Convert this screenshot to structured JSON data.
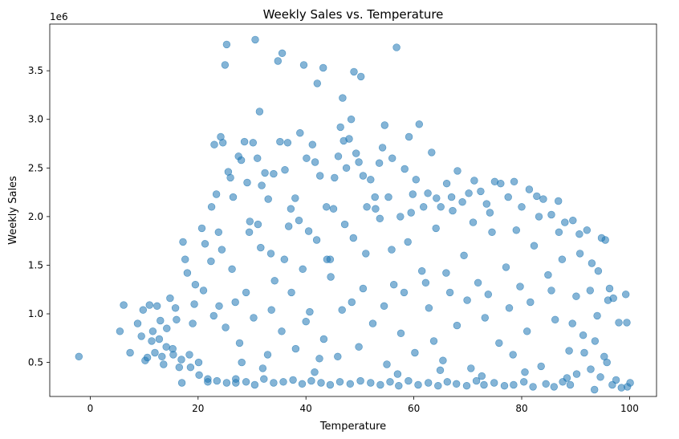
{
  "chart_data": {
    "type": "scatter",
    "title": "Weekly Sales vs. Temperature",
    "xlabel": "Temperature",
    "ylabel": "Weekly Sales",
    "y_offset_label": "1e6",
    "xlim": [
      -7.5,
      105
    ],
    "ylim": [
      0.15,
      3.98
    ],
    "xticks": [
      0,
      20,
      40,
      60,
      80,
      100
    ],
    "xtick_labels": [
      "0",
      "20",
      "40",
      "60",
      "80",
      "100"
    ],
    "yticks": [
      0.5,
      1.0,
      1.5,
      2.0,
      2.5,
      3.0,
      3.5
    ],
    "ytick_labels": [
      "0.5",
      "1.0",
      "1.5",
      "2.0",
      "2.5",
      "3.0",
      "3.5"
    ],
    "marker_color": "#1f77b4",
    "marker_alpha": 0.55,
    "grid": false,
    "series": [
      {
        "name": "Weekly Sales",
        "points": [
          [
            -2.1,
            0.56
          ],
          [
            5.5,
            0.82
          ],
          [
            6.2,
            1.09
          ],
          [
            7.4,
            0.6
          ],
          [
            9.5,
            0.77
          ],
          [
            9.8,
            1.04
          ],
          [
            10.2,
            0.52
          ],
          [
            10.6,
            0.55
          ],
          [
            11.0,
            1.09
          ],
          [
            11.6,
            0.82
          ],
          [
            12.0,
            0.6
          ],
          [
            12.4,
            1.08
          ],
          [
            13.0,
            0.93
          ],
          [
            13.6,
            0.48
          ],
          [
            14.2,
            0.85
          ],
          [
            14.8,
            1.16
          ],
          [
            15.3,
            0.64
          ],
          [
            15.8,
            1.06
          ],
          [
            16.5,
            0.45
          ],
          [
            17.0,
            0.29
          ],
          [
            17.2,
            1.74
          ],
          [
            17.6,
            1.56
          ],
          [
            18.0,
            1.42
          ],
          [
            18.4,
            0.58
          ],
          [
            19.0,
            0.9
          ],
          [
            19.5,
            1.3
          ],
          [
            20.1,
            0.5
          ],
          [
            20.7,
            1.88
          ],
          [
            21.3,
            1.72
          ],
          [
            21.8,
            0.3
          ],
          [
            22.5,
            2.1
          ],
          [
            23.0,
            2.74
          ],
          [
            23.4,
            2.23
          ],
          [
            23.8,
            1.84
          ],
          [
            24.2,
            2.82
          ],
          [
            24.6,
            2.76
          ],
          [
            25.0,
            3.56
          ],
          [
            25.3,
            3.77
          ],
          [
            25.6,
            2.46
          ],
          [
            26.0,
            2.4
          ],
          [
            26.5,
            2.2
          ],
          [
            27.0,
            0.29
          ],
          [
            27.5,
            2.62
          ],
          [
            28.0,
            2.58
          ],
          [
            28.6,
            2.77
          ],
          [
            29.1,
            2.35
          ],
          [
            29.6,
            1.95
          ],
          [
            30.2,
            2.76
          ],
          [
            30.6,
            3.82
          ],
          [
            31.0,
            2.6
          ],
          [
            31.4,
            3.08
          ],
          [
            31.8,
            2.32
          ],
          [
            32.4,
            2.45
          ],
          [
            33.0,
            2.18
          ],
          [
            33.5,
            1.62
          ],
          [
            34.0,
            2.44
          ],
          [
            34.8,
            3.6
          ],
          [
            35.2,
            2.77
          ],
          [
            35.6,
            3.68
          ],
          [
            36.1,
            2.48
          ],
          [
            36.6,
            2.76
          ],
          [
            37.2,
            2.08
          ],
          [
            38.0,
            2.19
          ],
          [
            38.9,
            2.86
          ],
          [
            39.6,
            3.56
          ],
          [
            40.1,
            2.6
          ],
          [
            40.5,
            1.85
          ],
          [
            41.2,
            2.74
          ],
          [
            41.7,
            2.56
          ],
          [
            42.1,
            3.37
          ],
          [
            42.6,
            2.42
          ],
          [
            43.2,
            3.53
          ],
          [
            43.8,
            2.1
          ],
          [
            44.5,
            1.56
          ],
          [
            45.3,
            2.4
          ],
          [
            46.0,
            2.62
          ],
          [
            46.4,
            2.92
          ],
          [
            46.8,
            3.22
          ],
          [
            47.0,
            2.78
          ],
          [
            47.5,
            2.5
          ],
          [
            48.0,
            2.8
          ],
          [
            48.4,
            3.0
          ],
          [
            48.9,
            3.49
          ],
          [
            49.3,
            2.65
          ],
          [
            49.8,
            2.56
          ],
          [
            50.2,
            3.44
          ],
          [
            50.6,
            2.42
          ],
          [
            51.3,
            2.1
          ],
          [
            52.0,
            2.38
          ],
          [
            52.8,
            2.2
          ],
          [
            53.6,
            2.55
          ],
          [
            54.2,
            2.71
          ],
          [
            54.6,
            2.94
          ],
          [
            55.3,
            2.2
          ],
          [
            56.0,
            2.6
          ],
          [
            56.8,
            3.74
          ],
          [
            57.5,
            2.0
          ],
          [
            58.3,
            2.49
          ],
          [
            59.1,
            2.82
          ],
          [
            59.8,
            2.23
          ],
          [
            60.4,
            2.38
          ],
          [
            61.0,
            2.95
          ],
          [
            61.8,
            2.1
          ],
          [
            62.6,
            2.24
          ],
          [
            63.3,
            2.66
          ],
          [
            64.2,
            2.19
          ],
          [
            65.0,
            2.1
          ],
          [
            66.1,
            2.34
          ],
          [
            67.0,
            2.2
          ],
          [
            68.1,
            2.47
          ],
          [
            69.0,
            2.15
          ],
          [
            70.2,
            2.24
          ],
          [
            71.2,
            2.37
          ],
          [
            72.4,
            2.26
          ],
          [
            73.5,
            2.13
          ],
          [
            75.0,
            2.36
          ],
          [
            76.1,
            2.34
          ],
          [
            77.5,
            2.2
          ],
          [
            78.6,
            2.36
          ],
          [
            80.0,
            2.1
          ],
          [
            81.4,
            2.28
          ],
          [
            82.8,
            2.21
          ],
          [
            84.0,
            2.18
          ],
          [
            85.5,
            2.02
          ],
          [
            86.8,
            2.16
          ],
          [
            88.0,
            1.94
          ],
          [
            89.5,
            1.96
          ],
          [
            90.7,
            1.82
          ],
          [
            92.1,
            1.86
          ],
          [
            93.0,
            1.52
          ],
          [
            94.2,
            1.44
          ],
          [
            95.5,
            1.76
          ],
          [
            96.3,
            1.26
          ],
          [
            97.0,
            1.16
          ],
          [
            98.0,
            0.91
          ],
          [
            99.3,
            1.2
          ],
          [
            99.5,
            0.91
          ],
          [
            99.6,
            0.25
          ],
          [
            100.1,
            0.29
          ],
          [
            98.5,
            0.24
          ],
          [
            97.5,
            0.32
          ],
          [
            96.8,
            0.27
          ],
          [
            95.8,
            0.5
          ],
          [
            94.6,
            0.35
          ],
          [
            93.5,
            0.22
          ],
          [
            92.8,
            0.43
          ],
          [
            91.6,
            0.6
          ],
          [
            90.2,
            0.38
          ],
          [
            89.0,
            0.27
          ],
          [
            87.6,
            0.3
          ],
          [
            86.0,
            0.25
          ],
          [
            84.5,
            0.28
          ],
          [
            82.1,
            0.25
          ],
          [
            80.4,
            0.3
          ],
          [
            78.5,
            0.27
          ],
          [
            76.8,
            0.26
          ],
          [
            74.9,
            0.29
          ],
          [
            73.0,
            0.27
          ],
          [
            71.6,
            0.31
          ],
          [
            69.8,
            0.26
          ],
          [
            67.9,
            0.28
          ],
          [
            66.2,
            0.3
          ],
          [
            64.5,
            0.26
          ],
          [
            62.7,
            0.29
          ],
          [
            60.8,
            0.27
          ],
          [
            59.0,
            0.31
          ],
          [
            57.2,
            0.26
          ],
          [
            55.6,
            0.3
          ],
          [
            53.8,
            0.27
          ],
          [
            52.0,
            0.29
          ],
          [
            50.1,
            0.31
          ],
          [
            48.2,
            0.28
          ],
          [
            46.3,
            0.3
          ],
          [
            44.5,
            0.27
          ],
          [
            42.8,
            0.29
          ],
          [
            41.0,
            0.31
          ],
          [
            39.3,
            0.28
          ],
          [
            37.6,
            0.32
          ],
          [
            35.8,
            0.3
          ],
          [
            34.0,
            0.29
          ],
          [
            32.2,
            0.33
          ],
          [
            30.5,
            0.27
          ],
          [
            28.9,
            0.3
          ],
          [
            27.0,
            0.33
          ],
          [
            25.3,
            0.29
          ],
          [
            23.5,
            0.31
          ],
          [
            21.8,
            0.33
          ],
          [
            20.2,
            0.37
          ],
          [
            18.6,
            0.45
          ],
          [
            16.9,
            0.53
          ],
          [
            15.4,
            0.58
          ],
          [
            14.1,
            0.66
          ],
          [
            12.8,
            0.74
          ],
          [
            21.0,
            1.24
          ],
          [
            22.4,
            1.54
          ],
          [
            23.9,
            1.08
          ],
          [
            25.1,
            0.86
          ],
          [
            26.3,
            1.46
          ],
          [
            27.7,
            0.7
          ],
          [
            28.9,
            1.22
          ],
          [
            30.3,
            0.96
          ],
          [
            31.6,
            1.68
          ],
          [
            32.9,
            0.58
          ],
          [
            34.2,
            1.34
          ],
          [
            35.5,
            0.82
          ],
          [
            36.8,
            1.9
          ],
          [
            38.1,
            0.64
          ],
          [
            39.4,
            1.46
          ],
          [
            40.7,
            1.02
          ],
          [
            42.0,
            1.76
          ],
          [
            43.3,
            0.74
          ],
          [
            44.6,
            1.38
          ],
          [
            45.9,
            0.56
          ],
          [
            47.2,
            1.92
          ],
          [
            48.5,
            1.12
          ],
          [
            49.8,
            0.66
          ],
          [
            51.1,
            1.62
          ],
          [
            52.4,
            0.9
          ],
          [
            53.7,
            1.98
          ],
          [
            55.0,
            0.48
          ],
          [
            56.3,
            1.3
          ],
          [
            57.6,
            0.8
          ],
          [
            58.9,
            1.74
          ],
          [
            60.2,
            0.6
          ],
          [
            61.5,
            1.44
          ],
          [
            62.8,
            1.06
          ],
          [
            64.1,
            1.88
          ],
          [
            65.4,
            0.52
          ],
          [
            66.7,
            1.22
          ],
          [
            68.0,
            0.88
          ],
          [
            69.3,
            1.6
          ],
          [
            70.6,
            0.44
          ],
          [
            71.9,
            1.32
          ],
          [
            73.2,
            0.96
          ],
          [
            74.5,
            1.84
          ],
          [
            75.8,
            0.7
          ],
          [
            77.1,
            1.48
          ],
          [
            78.4,
            0.58
          ],
          [
            79.7,
            1.28
          ],
          [
            81.0,
            0.82
          ],
          [
            82.3,
            1.7
          ],
          [
            83.6,
            0.46
          ],
          [
            84.9,
            1.4
          ],
          [
            86.2,
            0.94
          ],
          [
            87.5,
            1.56
          ],
          [
            88.8,
            0.62
          ],
          [
            90.1,
            1.18
          ],
          [
            91.4,
            0.78
          ],
          [
            92.7,
            1.24
          ],
          [
            94.0,
            0.98
          ],
          [
            95.3,
            0.56
          ],
          [
            22.9,
            0.98
          ],
          [
            24.4,
            1.66
          ],
          [
            26.9,
            1.12
          ],
          [
            29.5,
            1.84
          ],
          [
            33.6,
            1.04
          ],
          [
            37.3,
            1.22
          ],
          [
            40.0,
            0.92
          ],
          [
            43.9,
            1.56
          ],
          [
            46.7,
            1.04
          ],
          [
            50.6,
            1.26
          ],
          [
            54.5,
            1.08
          ],
          [
            58.2,
            1.22
          ],
          [
            62.2,
            1.32
          ],
          [
            66.0,
            1.42
          ],
          [
            69.9,
            1.14
          ],
          [
            73.8,
            1.2
          ],
          [
            77.7,
            1.06
          ],
          [
            81.6,
            1.12
          ],
          [
            85.5,
            1.24
          ],
          [
            89.4,
            0.9
          ],
          [
            93.6,
            0.72
          ],
          [
            36.0,
            1.56
          ],
          [
            42.5,
            0.54
          ],
          [
            48.8,
            1.78
          ],
          [
            55.9,
            1.66
          ],
          [
            63.7,
            0.72
          ],
          [
            71.0,
            1.94
          ],
          [
            79.0,
            1.86
          ],
          [
            86.9,
            1.84
          ],
          [
            67.2,
            2.06
          ],
          [
            74.1,
            2.04
          ],
          [
            59.5,
            2.04
          ],
          [
            52.9,
            2.08
          ],
          [
            45.1,
            2.08
          ],
          [
            38.7,
            1.96
          ],
          [
            31.1,
            1.92
          ],
          [
            83.2,
            2.0
          ],
          [
            90.8,
            1.62
          ],
          [
            96.0,
            1.14
          ],
          [
            94.8,
            1.78
          ],
          [
            19.3,
            1.1
          ],
          [
            16.0,
            0.94
          ],
          [
            13.3,
            0.56
          ],
          [
            11.4,
            0.72
          ],
          [
            8.8,
            0.9
          ],
          [
            28.1,
            0.5
          ],
          [
            32.0,
            0.44
          ],
          [
            41.6,
            0.4
          ],
          [
            57.0,
            0.38
          ],
          [
            64.9,
            0.42
          ],
          [
            72.6,
            0.36
          ],
          [
            80.6,
            0.4
          ],
          [
            88.4,
            0.34
          ]
        ]
      }
    ]
  }
}
